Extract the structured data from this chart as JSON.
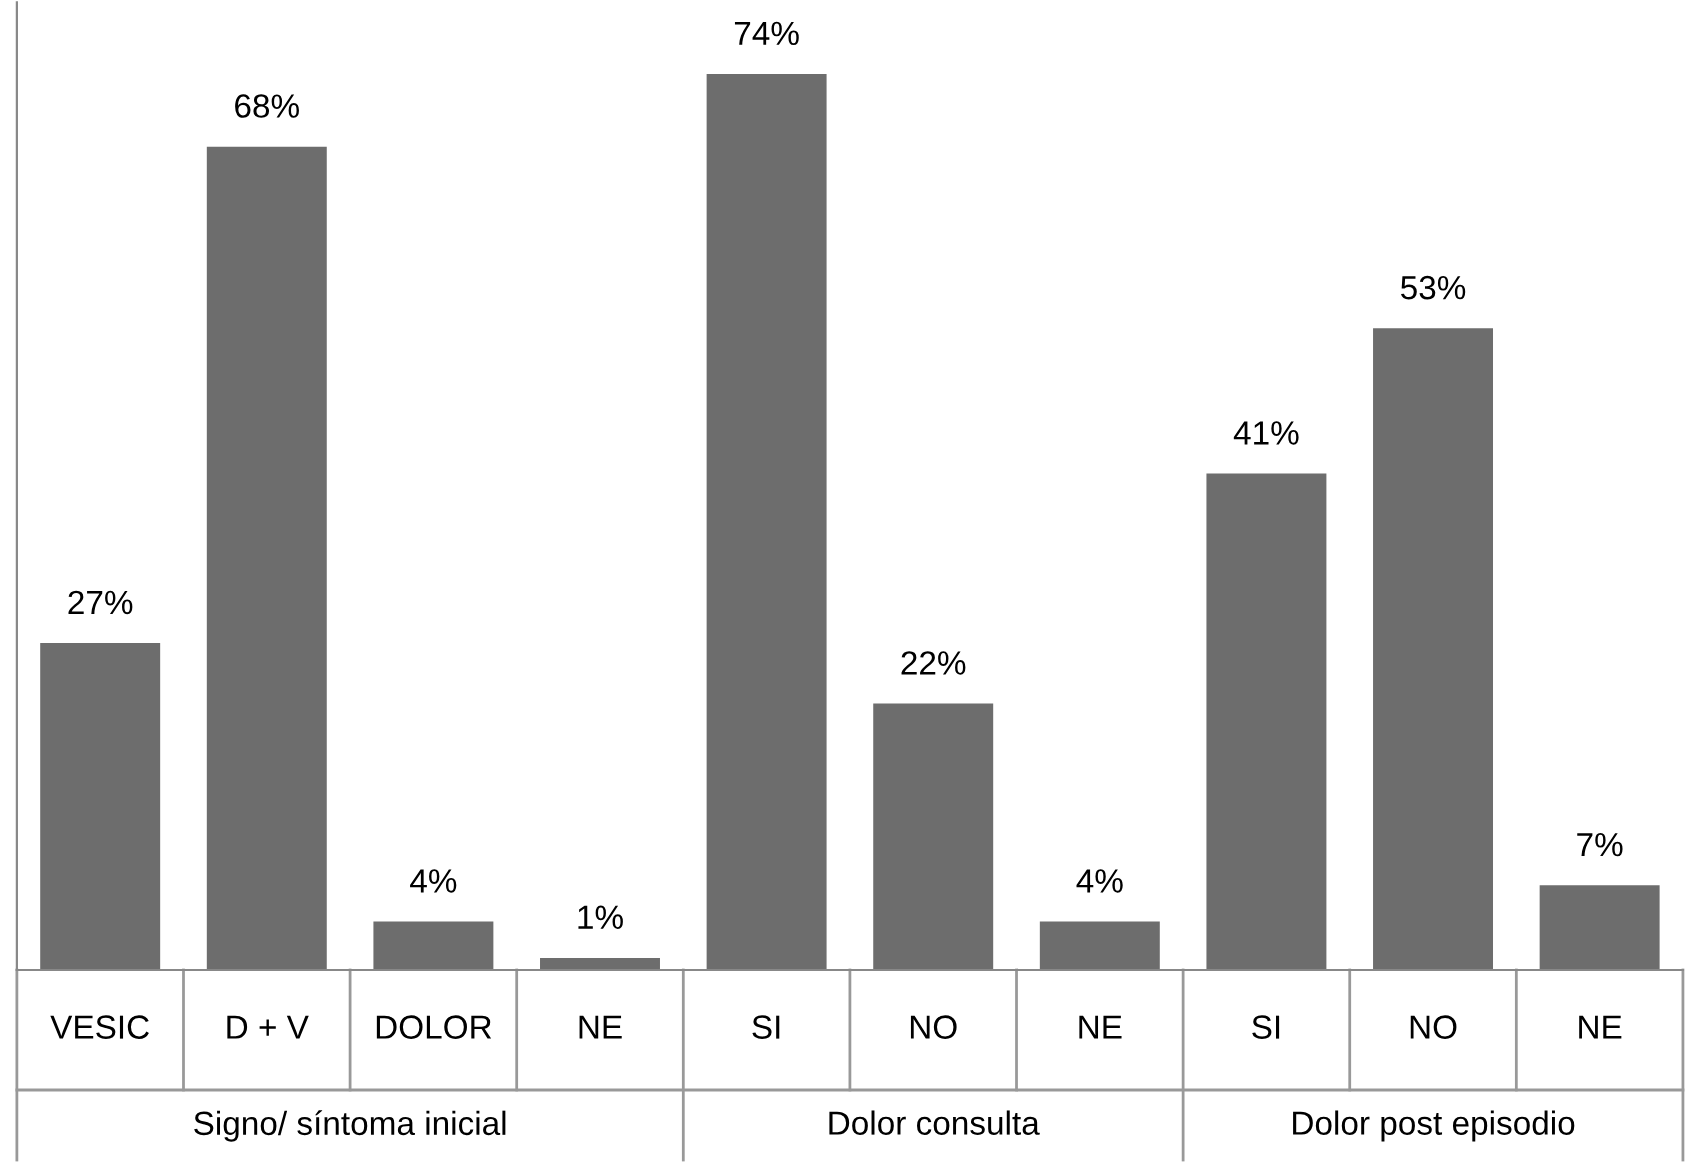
{
  "chart_data": {
    "type": "bar",
    "categories": [
      "VESIC",
      "D + V",
      "DOLOR",
      "NE",
      "SI",
      "NO",
      "NE",
      "SI",
      "NO",
      "NE"
    ],
    "values": [
      27,
      68,
      4,
      1,
      74,
      22,
      4,
      41,
      53,
      7
    ],
    "value_labels": [
      "27%",
      "68%",
      "4%",
      "1%",
      "74%",
      "22%",
      "4%",
      "41%",
      "53%",
      "7%"
    ],
    "color": "#6d6d6d",
    "annotations": [
      "Signo/ síntoma inicial",
      "Dolor consulta",
      "Dolor post episodio"
    ]
  }
}
